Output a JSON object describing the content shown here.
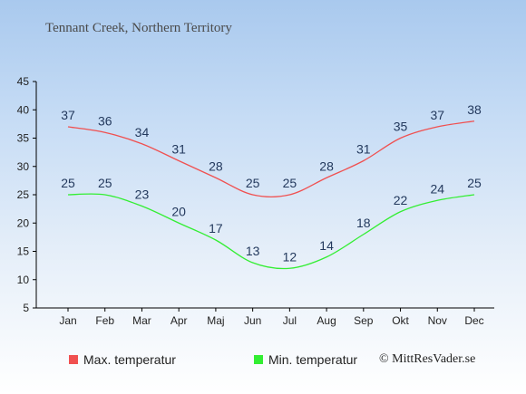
{
  "chart_data": {
    "type": "line",
    "title": "Tennant Creek, Northern Territory",
    "categories": [
      "Jan",
      "Feb",
      "Mar",
      "Apr",
      "Maj",
      "Jun",
      "Jul",
      "Aug",
      "Sep",
      "Okt",
      "Nov",
      "Dec"
    ],
    "series": [
      {
        "name": "Max. temperatur",
        "color": "#f05050",
        "values": [
          37,
          36,
          34,
          31,
          28,
          25,
          25,
          28,
          31,
          35,
          37,
          38
        ]
      },
      {
        "name": "Min. temperatur",
        "color": "#33ee33",
        "values": [
          25,
          25,
          23,
          20,
          17,
          13,
          12,
          14,
          18,
          22,
          24,
          25
        ]
      }
    ],
    "ylim": [
      5,
      45
    ],
    "yticks": [
      5,
      10,
      15,
      20,
      25,
      30,
      35,
      40,
      45
    ],
    "grid": false,
    "legend_position": "bottom"
  },
  "credit": "© MittResVader.se"
}
